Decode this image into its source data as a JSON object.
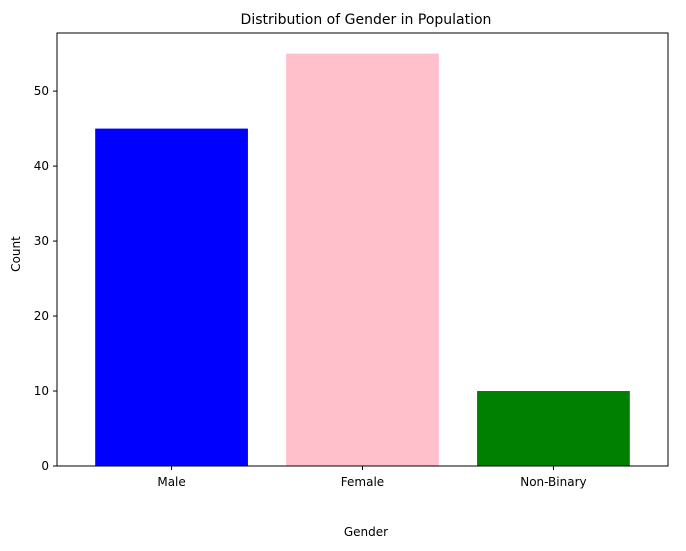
{
  "chart_data": {
    "type": "bar",
    "title": "Distribution of Gender in Population",
    "xlabel": "Gender",
    "ylabel": "Count",
    "categories": [
      "Male",
      "Female",
      "Non-Binary"
    ],
    "values": [
      45,
      55,
      10
    ],
    "colors": [
      "#0000ff",
      "#ffc0cb",
      "#008000"
    ],
    "ylim": [
      0,
      57.75
    ],
    "yticks": [
      0,
      10,
      20,
      30,
      40,
      50
    ],
    "grid": false,
    "legend": "none"
  }
}
